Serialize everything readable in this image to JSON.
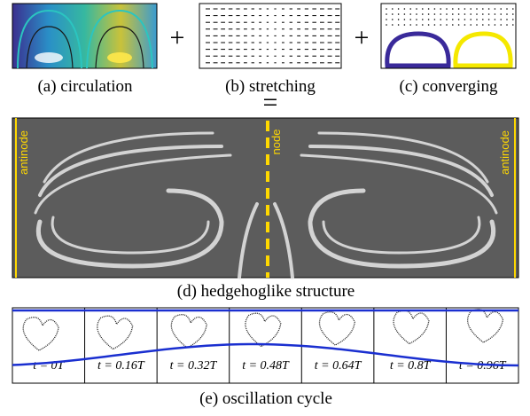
{
  "panels": [
    {
      "caption": "(a) circulation"
    },
    {
      "caption": "(b) stretching"
    },
    {
      "caption": "(c) converging"
    }
  ],
  "operators": [
    "+",
    "+",
    "="
  ],
  "main": {
    "labels": [
      "antinode",
      "node",
      "antinode"
    ],
    "caption": "(d) hedgehoglike structure"
  },
  "cycle": {
    "frames": [
      "t = 0T",
      "t = 0.16T",
      "t = 0.32T",
      "t = 0.48T",
      "t = 0.64T",
      "t = 0.8T",
      "t = 0.96T"
    ],
    "caption": "(e) oscillation cycle"
  }
}
